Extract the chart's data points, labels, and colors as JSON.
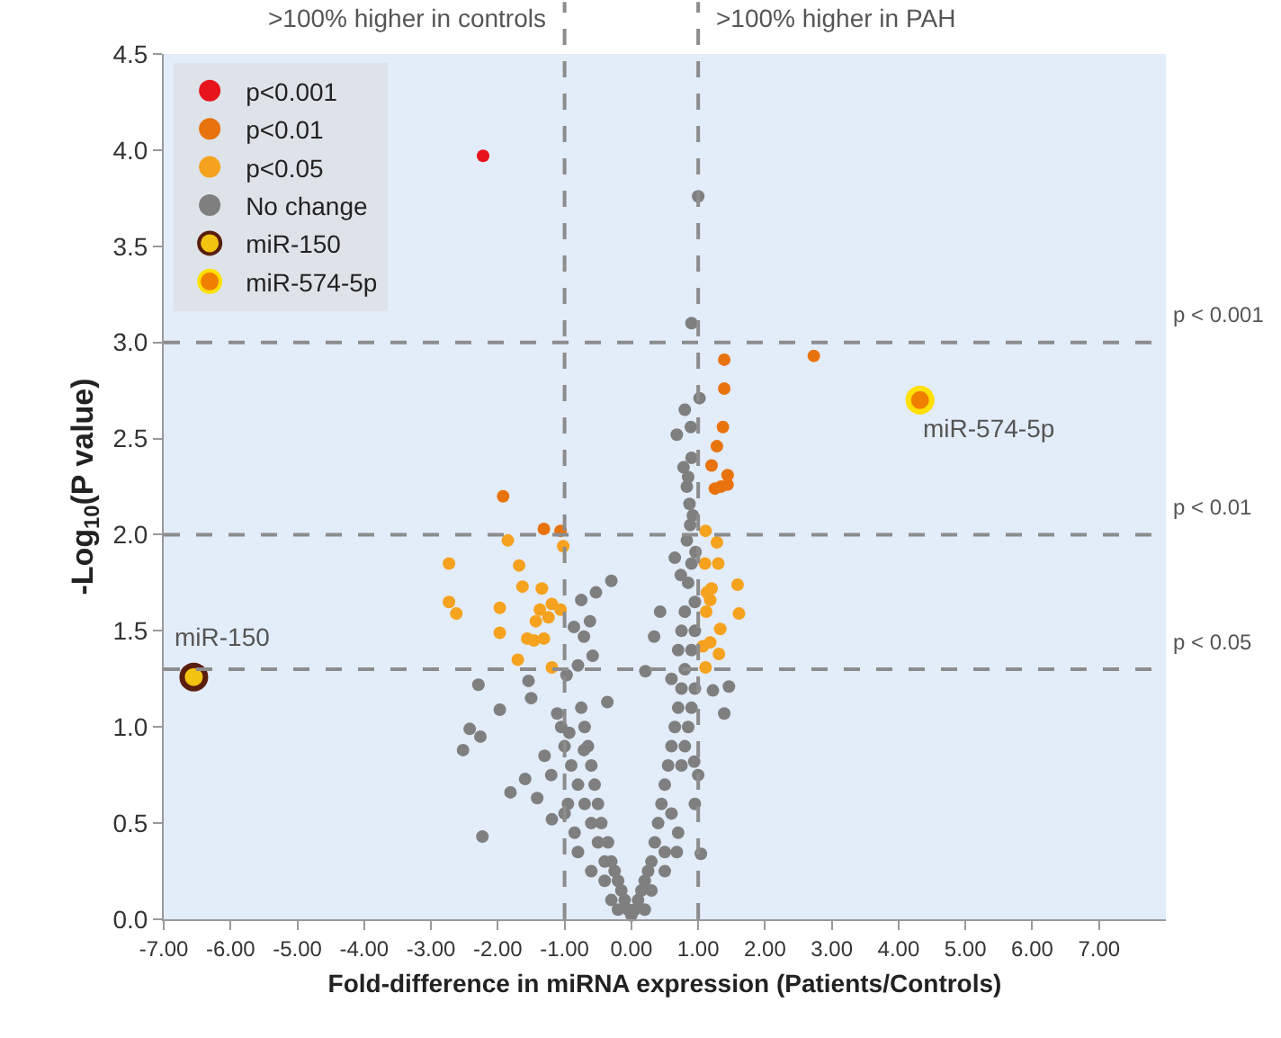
{
  "chart_data": {
    "type": "scatter",
    "xlabel": "Fold-difference in miRNA expression (Patients/Controls)",
    "ylabel": "-Log$_{10}$(P value)",
    "xlim": [
      -7,
      8
    ],
    "ylim": [
      0,
      4.5
    ],
    "xticks": [
      {
        "value": -7,
        "label": "-7.00"
      },
      {
        "value": -6,
        "label": "-6.00"
      },
      {
        "value": -5,
        "label": "-5.00"
      },
      {
        "value": -4,
        "label": "-4.00"
      },
      {
        "value": -3,
        "label": "-3.00"
      },
      {
        "value": -2,
        "label": "-2.00"
      },
      {
        "value": -1,
        "label": "-1.00"
      },
      {
        "value": 0,
        "label": "0.00"
      },
      {
        "value": 1,
        "label": "1.00"
      },
      {
        "value": 2,
        "label": "2.00"
      },
      {
        "value": 3,
        "label": "3.00"
      },
      {
        "value": 4,
        "label": "4.00"
      },
      {
        "value": 5,
        "label": "5.00"
      },
      {
        "value": 6,
        "label": "6.00"
      },
      {
        "value": 7,
        "label": "7.00"
      }
    ],
    "yticks": [
      {
        "value": 0,
        "label": "0.0"
      },
      {
        "value": 0.5,
        "label": "0.5"
      },
      {
        "value": 1,
        "label": "1.0"
      },
      {
        "value": 1.5,
        "label": "1.5"
      },
      {
        "value": 2,
        "label": "2.0"
      },
      {
        "value": 2.5,
        "label": "2.5"
      },
      {
        "value": 3,
        "label": "3.0"
      },
      {
        "value": 3.5,
        "label": "3.5"
      },
      {
        "value": 4,
        "label": "4.0"
      },
      {
        "value": 4.5,
        "label": "4.5"
      }
    ],
    "grid": false,
    "legend": "top left",
    "marker": "circle",
    "series": [
      {
        "name": "p<0.001",
        "color": "#e8141c",
        "x": [
          -2.22
        ],
        "values": [
          3.97
        ]
      },
      {
        "name": "p<0.01",
        "color": "#e8730c",
        "x": [
          1.39,
          1.39,
          1.37,
          1.28,
          1.2,
          1.44,
          1.25,
          1.44,
          1.34,
          2.73,
          -1.92,
          -1.31,
          -1.06
        ],
        "values": [
          2.91,
          2.76,
          2.56,
          2.46,
          2.36,
          2.31,
          2.24,
          2.26,
          2.25,
          2.93,
          2.2,
          2.03,
          2.02
        ]
      },
      {
        "name": "p<0.05",
        "color": "#f5a21e",
        "x": [
          -1.85,
          -1.02,
          -2.73,
          -1.68,
          -1.63,
          -1.34,
          -2.73,
          -2.62,
          -1.97,
          -1.37,
          -1.19,
          -1.06,
          -1.24,
          -1.43,
          -1.97,
          -1.56,
          -1.46,
          -1.31,
          -1.7,
          -1.19,
          1.11,
          1.28,
          1.1,
          1.3,
          1.59,
          1.2,
          1.13,
          1.18,
          1.61,
          1.12,
          1.33,
          1.18,
          1.07,
          1.31,
          1.11
        ],
        "values": [
          1.97,
          1.94,
          1.85,
          1.84,
          1.73,
          1.72,
          1.65,
          1.59,
          1.62,
          1.61,
          1.64,
          1.61,
          1.57,
          1.55,
          1.49,
          1.46,
          1.45,
          1.46,
          1.35,
          1.31,
          2.02,
          1.96,
          1.85,
          1.85,
          1.74,
          1.72,
          1.7,
          1.66,
          1.59,
          1.6,
          1.51,
          1.44,
          1.42,
          1.38,
          1.31
        ]
      },
      {
        "name": "No change",
        "color": "#7f7f7f",
        "x": [
          1.0,
          0.9,
          1.02,
          0.8,
          0.89,
          0.68,
          0.78,
          0.83,
          0.87,
          0.83,
          0.96,
          0.65,
          0.74,
          -0.3,
          -0.53,
          -0.75,
          -0.86,
          -0.62,
          -0.71,
          -0.58,
          -0.8,
          -0.97,
          -2.29,
          -1.54,
          -1.5,
          -1.97,
          -2.42,
          -2.26,
          -2.52,
          -2.23,
          -1.81,
          -1.59,
          -1.41,
          -1.19,
          -1.11,
          -0.93,
          -0.71,
          -0.36,
          0.21,
          0.34,
          0.43,
          1.22,
          1.46,
          1.39,
          0.94,
          1.04,
          0.68,
          0.0,
          0.05,
          -0.05,
          0.1,
          -0.1,
          0.15,
          -0.15,
          0.2,
          -0.2,
          0.25,
          -0.25,
          0.3,
          -0.3,
          -0.4,
          0.35,
          -0.35,
          -0.5,
          0.4,
          -0.45,
          -0.6,
          0.45,
          -0.5,
          -0.7,
          0.5,
          -0.55,
          -0.8,
          0.55,
          0.75,
          -0.6,
          -0.9,
          0.6,
          0.8,
          -0.65,
          -1.0,
          0.65,
          0.85,
          -0.7,
          -1.05,
          0.7,
          0.9,
          -0.75,
          0.75,
          0.95,
          0.6,
          0.8,
          0.7,
          0.9,
          0.75,
          0.95,
          0.8,
          0.95,
          0.85,
          0.9,
          0.88,
          0.92,
          0.85,
          0.9,
          0.3,
          -0.3,
          0.2,
          -0.2,
          0.5,
          -0.6,
          0.6,
          -0.85,
          0.95,
          -0.95,
          1.0,
          -1.2,
          -0.4,
          -0.8,
          -1.3,
          -1.0,
          0.5,
          0.7
        ],
        "values": [
          3.76,
          3.1,
          2.71,
          2.65,
          2.56,
          2.52,
          2.35,
          2.25,
          2.16,
          1.97,
          1.91,
          1.88,
          1.79,
          1.76,
          1.7,
          1.66,
          1.52,
          1.55,
          1.47,
          1.37,
          1.32,
          1.27,
          1.22,
          1.24,
          1.15,
          1.09,
          0.99,
          0.95,
          0.88,
          0.43,
          0.66,
          0.73,
          0.63,
          0.52,
          1.07,
          0.97,
          0.88,
          1.13,
          1.29,
          1.47,
          1.6,
          1.19,
          1.21,
          1.07,
          0.82,
          0.34,
          0.35,
          0.02,
          0.05,
          0.05,
          0.1,
          0.1,
          0.15,
          0.15,
          0.2,
          0.2,
          0.25,
          0.25,
          0.3,
          0.3,
          0.3,
          0.4,
          0.4,
          0.4,
          0.5,
          0.5,
          0.5,
          0.6,
          0.6,
          0.6,
          0.7,
          0.7,
          0.7,
          0.8,
          0.8,
          0.8,
          0.8,
          0.9,
          0.9,
          0.9,
          0.9,
          1.0,
          1.0,
          1.0,
          1.0,
          1.1,
          1.1,
          1.1,
          1.2,
          1.2,
          1.25,
          1.3,
          1.4,
          1.4,
          1.5,
          1.5,
          1.6,
          1.65,
          1.75,
          1.85,
          2.05,
          2.1,
          2.3,
          2.4,
          0.15,
          0.1,
          0.05,
          0.05,
          0.35,
          0.25,
          0.55,
          0.45,
          0.6,
          0.6,
          0.75,
          0.75,
          0.2,
          0.35,
          0.85,
          0.55,
          0.25,
          0.45
        ]
      },
      {
        "name": "miR-150",
        "color": "#f2c40f",
        "x": [
          -6.55
        ],
        "values": [
          1.26
        ]
      },
      {
        "name": "miR-574-5p",
        "color": "#f07f00",
        "x": [
          4.32
        ],
        "values": [
          2.7
        ]
      }
    ],
    "ref_lines": [
      {
        "axis": "x",
        "value": -1,
        "label": ">100% higher in controls"
      },
      {
        "axis": "x",
        "value": 1,
        "label": ">100% higher in PAH"
      },
      {
        "axis": "y",
        "value": 3,
        "label": "p < 0.001"
      },
      {
        "axis": "y",
        "value": 2,
        "label": "p < 0.01"
      },
      {
        "axis": "y",
        "value": 1.3,
        "label": "p < 0.05"
      }
    ],
    "annotations": [
      {
        "text": "miR-150",
        "x": -6.55,
        "y": 1.26
      },
      {
        "text": "miR-574-5p",
        "x": 4.32,
        "y": 2.7
      }
    ]
  }
}
